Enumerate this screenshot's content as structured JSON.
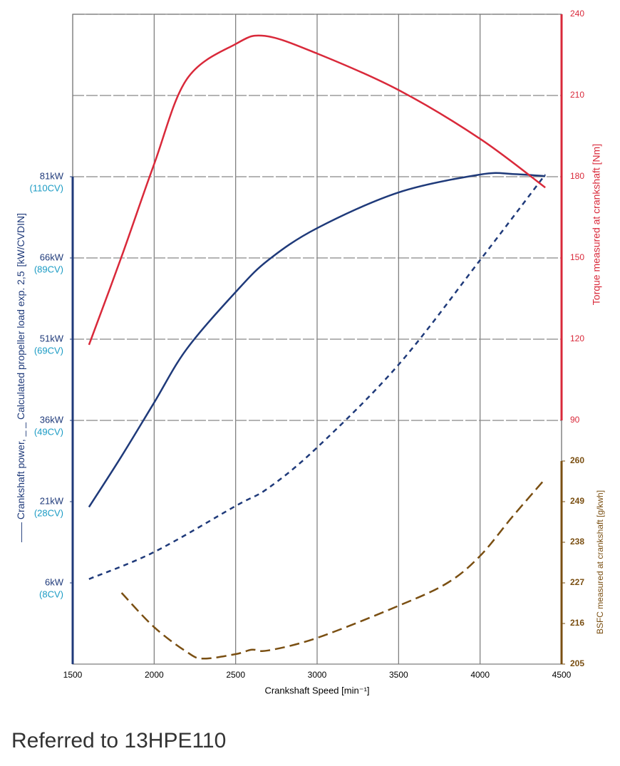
{
  "chart_data": {
    "type": "line",
    "xlabel": "Crankshaft Speed [min⁻¹]",
    "xlim": [
      1500,
      4500
    ],
    "xticks": [
      1500,
      2000,
      2500,
      3000,
      3500,
      4000,
      4500
    ],
    "ylabel_unit": "[kW/CVDIN]",
    "ylim": [
      -9,
      111
    ],
    "yticks": [
      {
        "value": 6,
        "label": "6kW"
      },
      {
        "value": 21,
        "label": "21kW"
      },
      {
        "value": 36,
        "label": "36kW"
      },
      {
        "value": 51,
        "label": "51kW"
      },
      {
        "value": 66,
        "label": "66kW"
      },
      {
        "value": 81,
        "label": "81kW"
      }
    ],
    "ytick_cv_labels": [
      "(8CV)",
      "(28CV)",
      "(49CV)",
      "(69CV)",
      "(89CV)",
      "(110CV)"
    ],
    "y2label": "Torque measured at crankshaft [Nm]",
    "y2lim": [
      0,
      240
    ],
    "y2ticks": [
      90,
      120,
      150,
      180,
      210,
      240
    ],
    "y3label": "BSFC measured  at crankshaft [g/kwh]",
    "y3lim": [
      205,
      381
    ],
    "y3ticks": [
      205,
      216,
      227,
      238,
      249,
      260
    ],
    "grid": true,
    "series": [
      {
        "name": "Crankshaft power,",
        "color": "#1f3a7a",
        "dash": false,
        "axis": "y",
        "x": [
          1600,
          1800,
          2000,
          2200,
          2500,
          2700,
          3000,
          3500,
          4000,
          4200,
          4400
        ],
        "values": [
          20,
          29.4,
          39.3,
          49.2,
          59.7,
          65.6,
          71.5,
          78.1,
          81.4,
          81.5,
          81.1
        ]
      },
      {
        "name": "Calculated propeller load exp. 2,5",
        "color": "#1f3a7a",
        "dash": true,
        "axis": "y",
        "x": [
          1600,
          2000,
          2500,
          2700,
          3000,
          3500,
          4000,
          4400
        ],
        "values": [
          6.7,
          11.7,
          20.2,
          23.5,
          31,
          46.3,
          65.6,
          81.4
        ]
      },
      {
        "color": "#d9293a",
        "dash": false,
        "axis": "y2",
        "x": [
          1600,
          1800,
          2000,
          2200,
          2500,
          2680,
          3000,
          3500,
          4000,
          4400
        ],
        "values": [
          117.9,
          150.5,
          184.7,
          216,
          229,
          232,
          225.5,
          212,
          194,
          176
        ]
      },
      {
        "color": "#7a4f12",
        "dash": true,
        "axis": "y3",
        "x": [
          1800,
          2000,
          2200,
          2300,
          2500,
          2600,
          2700,
          3000,
          3500,
          3800,
          4000,
          4200,
          4400
        ],
        "values": [
          224.3,
          215,
          208.3,
          206.5,
          207.7,
          208.9,
          208.7,
          212.1,
          220.8,
          227,
          234.3,
          245,
          255.2
        ]
      }
    ],
    "footer": "Referred to 13HPE110"
  }
}
